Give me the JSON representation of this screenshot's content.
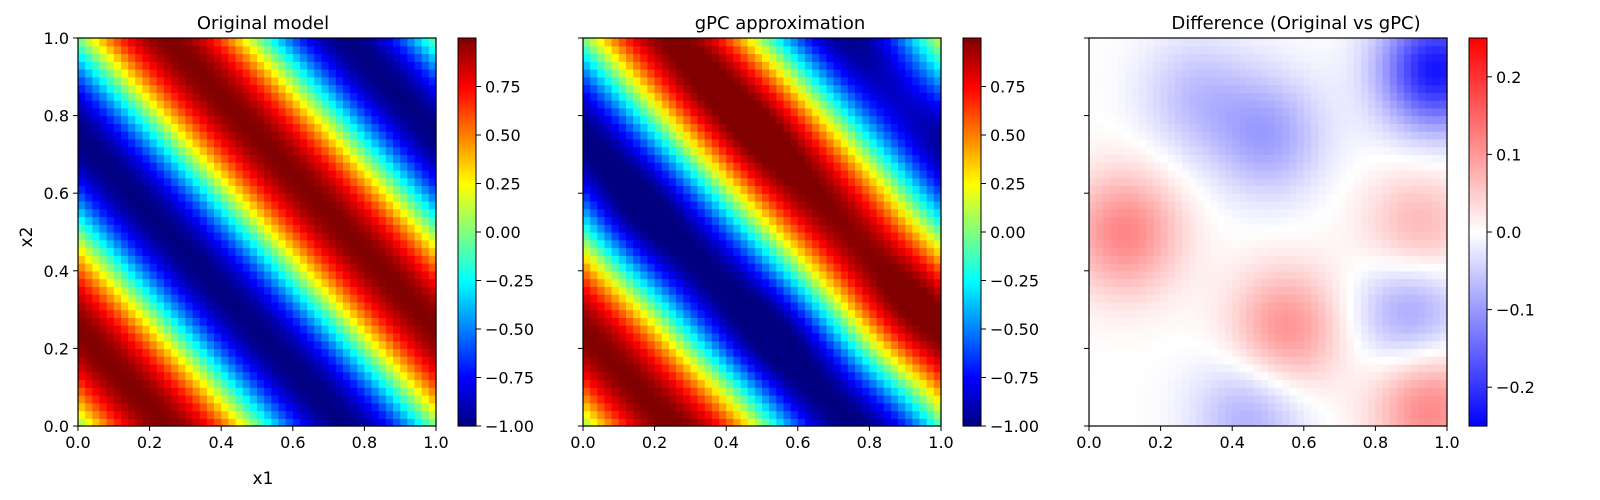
{
  "chart_data": [
    {
      "type": "heatmap",
      "title": "Original model",
      "xlabel": "x1",
      "ylabel": "x2",
      "xlim": [
        0.0,
        1.0
      ],
      "ylim": [
        0.0,
        1.0
      ],
      "grid_size": 50,
      "field": "sin(2*pi*(x1 + x2))",
      "colormap": "jet",
      "x_ticks": [
        "0.0",
        "0.2",
        "0.4",
        "0.6",
        "0.8",
        "1.0"
      ],
      "y_ticks": [
        "0.0",
        "0.2",
        "0.4",
        "0.6",
        "0.8",
        "1.0"
      ],
      "colorbar": {
        "range": [
          -1.0,
          1.0
        ],
        "ticks": [
          {
            "value": -1.0,
            "label": "−1.00"
          },
          {
            "value": -0.75,
            "label": "−0.75"
          },
          {
            "value": -0.5,
            "label": "−0.50"
          },
          {
            "value": -0.25,
            "label": "−0.25"
          },
          {
            "value": 0.0,
            "label": "0.00"
          },
          {
            "value": 0.25,
            "label": "0.25"
          },
          {
            "value": 0.5,
            "label": "0.50"
          },
          {
            "value": 0.75,
            "label": "0.75"
          }
        ]
      },
      "grid": false
    },
    {
      "type": "heatmap",
      "title": "gPC approximation",
      "xlabel": "",
      "ylabel": "",
      "xlim": [
        0.0,
        1.0
      ],
      "ylim": [
        0.0,
        1.0
      ],
      "grid_size": 50,
      "field": "sin(2*pi*(x1 + x2)) - difference",
      "colormap": "jet",
      "x_ticks": [
        "0.0",
        "0.2",
        "0.4",
        "0.6",
        "0.8",
        "1.0"
      ],
      "y_ticks": [],
      "colorbar": {
        "range": [
          -1.0,
          1.0
        ],
        "ticks": [
          {
            "value": -1.0,
            "label": "−1.00"
          },
          {
            "value": -0.75,
            "label": "−0.75"
          },
          {
            "value": -0.5,
            "label": "−0.50"
          },
          {
            "value": -0.25,
            "label": "−0.25"
          },
          {
            "value": 0.0,
            "label": "0.00"
          },
          {
            "value": 0.25,
            "label": "0.25"
          },
          {
            "value": 0.5,
            "label": "0.50"
          },
          {
            "value": 0.75,
            "label": "0.75"
          }
        ]
      },
      "grid": false
    },
    {
      "type": "heatmap",
      "title": "Difference (Original vs gPC)",
      "xlabel": "",
      "ylabel": "",
      "xlim": [
        0.0,
        1.0
      ],
      "ylim": [
        0.0,
        1.0
      ],
      "grid_size": 50,
      "field": "difference",
      "colormap": "bwr",
      "x_ticks": [
        "0.0",
        "0.2",
        "0.4",
        "0.6",
        "0.8",
        "1.0"
      ],
      "y_ticks": [],
      "colorbar": {
        "range": [
          -0.25,
          0.25
        ],
        "ticks": [
          {
            "value": -0.2,
            "label": "−0.2"
          },
          {
            "value": -0.1,
            "label": "−0.1"
          },
          {
            "value": 0.0,
            "label": "0.0"
          },
          {
            "value": 0.1,
            "label": "0.1"
          },
          {
            "value": 0.2,
            "label": "0.2"
          }
        ]
      },
      "difference_features": [
        {
          "x1": 0.1,
          "x2": 0.5,
          "value": 0.12
        },
        {
          "x1": 0.55,
          "x2": 0.25,
          "value": 0.11
        },
        {
          "x1": 0.92,
          "x2": 0.5,
          "value": 0.08
        },
        {
          "x1": 0.95,
          "x2": 0.05,
          "value": 0.12
        },
        {
          "x1": 0.5,
          "x2": 0.75,
          "value": -0.09
        },
        {
          "x1": 0.3,
          "x2": 0.85,
          "value": -0.06
        },
        {
          "x1": 0.9,
          "x2": 0.3,
          "value": -0.1
        },
        {
          "x1": 0.97,
          "x2": 0.92,
          "value": -0.23
        },
        {
          "x1": 0.45,
          "x2": 0.03,
          "value": -0.08
        }
      ],
      "grid": false
    }
  ]
}
